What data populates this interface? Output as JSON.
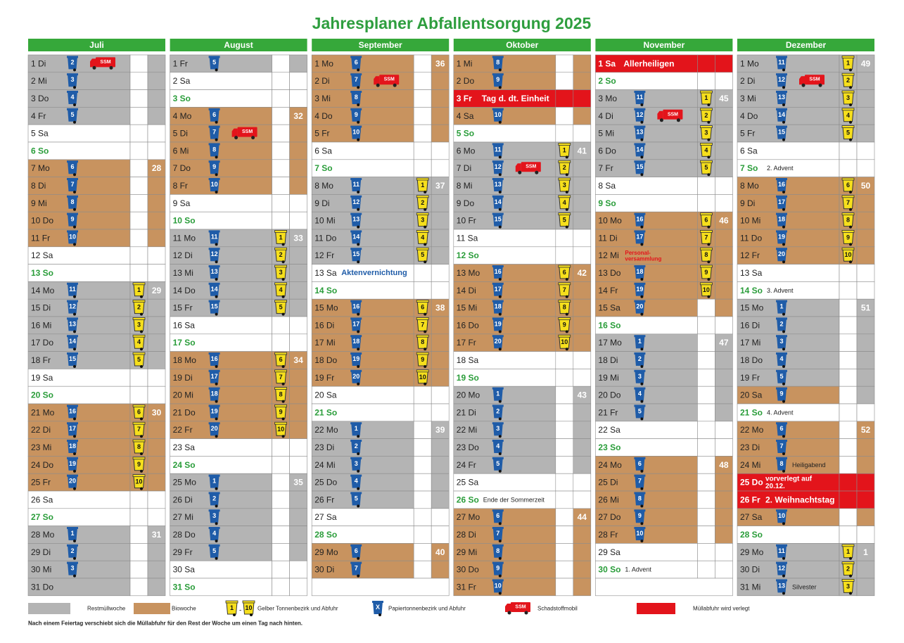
{
  "title": "Jahresplaner Abfallentsorgung 2025",
  "ssm_label": "SSM",
  "colors": {
    "r": "#b4b4b4",
    "b": "#c8935f",
    "h": "#e3141b",
    "w": "#ffffff",
    "s": "#ffffff",
    "header": "#36a83a",
    "sun_text": "#2a9d3a",
    "paper": "#1f5ca8",
    "yellow": "#f6df1c",
    "note_text": "#222222"
  },
  "months": [
    {
      "name": "Juli",
      "days": [
        {
          "d": "1 Di",
          "bg": "r",
          "p": 2,
          "s": true
        },
        {
          "d": "2 Mi",
          "bg": "r",
          "p": 3
        },
        {
          "d": "3 Do",
          "bg": "r",
          "p": 4
        },
        {
          "d": "4 Fr",
          "bg": "r",
          "p": 5
        },
        {
          "d": "5 Sa"
        },
        {
          "d": "6 So",
          "bg": "s"
        },
        {
          "d": "7 Mo",
          "bg": "b",
          "p": 6,
          "w": 28
        },
        {
          "d": "8 Di",
          "bg": "b",
          "p": 7
        },
        {
          "d": "9 Mi",
          "bg": "b",
          "p": 8
        },
        {
          "d": "10 Do",
          "bg": "b",
          "p": 9
        },
        {
          "d": "11 Fr",
          "bg": "b",
          "p": 10
        },
        {
          "d": "12 Sa"
        },
        {
          "d": "13 So",
          "bg": "s"
        },
        {
          "d": "14 Mo",
          "bg": "r",
          "p": 11,
          "y": 1,
          "w": 29
        },
        {
          "d": "15 Di",
          "bg": "r",
          "p": 12,
          "y": 2
        },
        {
          "d": "16 Mi",
          "bg": "r",
          "p": 13,
          "y": 3
        },
        {
          "d": "17 Do",
          "bg": "r",
          "p": 14,
          "y": 4
        },
        {
          "d": "18 Fr",
          "bg": "r",
          "p": 15,
          "y": 5
        },
        {
          "d": "19 Sa"
        },
        {
          "d": "20 So",
          "bg": "s"
        },
        {
          "d": "21 Mo",
          "bg": "b",
          "p": 16,
          "y": 6,
          "w": 30
        },
        {
          "d": "22 Di",
          "bg": "b",
          "p": 17,
          "y": 7
        },
        {
          "d": "23 Mi",
          "bg": "b",
          "p": 18,
          "y": 8
        },
        {
          "d": "24 Do",
          "bg": "b",
          "p": 19,
          "y": 9
        },
        {
          "d": "25 Fr",
          "bg": "b",
          "p": 20,
          "y": 10
        },
        {
          "d": "26 Sa"
        },
        {
          "d": "27 So",
          "bg": "s"
        },
        {
          "d": "28 Mo",
          "bg": "r",
          "p": 1,
          "w": 31
        },
        {
          "d": "29 Di",
          "bg": "r",
          "p": 2
        },
        {
          "d": "30 Mi",
          "bg": "r",
          "p": 3
        },
        {
          "d": "31 Do",
          "bg": "r"
        }
      ]
    },
    {
      "name": "August",
      "days": [
        {
          "d": "1 Fr",
          "bg": "r",
          "p": 5
        },
        {
          "d": "2 Sa"
        },
        {
          "d": "3 So",
          "bg": "s"
        },
        {
          "d": "4 Mo",
          "bg": "b",
          "p": 6,
          "w": 32
        },
        {
          "d": "5 Di",
          "bg": "b",
          "p": 7,
          "s": true
        },
        {
          "d": "6 Mi",
          "bg": "b",
          "p": 8
        },
        {
          "d": "7 Do",
          "bg": "b",
          "p": 9
        },
        {
          "d": "8 Fr",
          "bg": "b",
          "p": 10
        },
        {
          "d": "9 Sa"
        },
        {
          "d": "10 So",
          "bg": "s"
        },
        {
          "d": "11 Mo",
          "bg": "r",
          "p": 11,
          "y": 1,
          "w": 33
        },
        {
          "d": "12 Di",
          "bg": "r",
          "p": 12,
          "y": 2
        },
        {
          "d": "13 Mi",
          "bg": "r",
          "p": 13,
          "y": 3
        },
        {
          "d": "14 Do",
          "bg": "r",
          "p": 14,
          "y": 4
        },
        {
          "d": "15 Fr",
          "bg": "r",
          "p": 15,
          "y": 5
        },
        {
          "d": "16 Sa"
        },
        {
          "d": "17 So",
          "bg": "s"
        },
        {
          "d": "18 Mo",
          "bg": "b",
          "p": 16,
          "y": 6,
          "w": 34
        },
        {
          "d": "19 Di",
          "bg": "b",
          "p": 17,
          "y": 7
        },
        {
          "d": "20 Mi",
          "bg": "b",
          "p": 18,
          "y": 8
        },
        {
          "d": "21 Do",
          "bg": "b",
          "p": 19,
          "y": 9
        },
        {
          "d": "22 Fr",
          "bg": "b",
          "p": 20,
          "y": 10
        },
        {
          "d": "23 Sa"
        },
        {
          "d": "24 So",
          "bg": "s"
        },
        {
          "d": "25 Mo",
          "bg": "r",
          "p": 1,
          "w": 35
        },
        {
          "d": "26 Di",
          "bg": "r",
          "p": 2
        },
        {
          "d": "27 Mi",
          "bg": "r",
          "p": 3
        },
        {
          "d": "28 Do",
          "bg": "r",
          "p": 4
        },
        {
          "d": "29 Fr",
          "bg": "r",
          "p": 5
        },
        {
          "d": "30 Sa"
        },
        {
          "d": "31 So",
          "bg": "s"
        }
      ]
    },
    {
      "name": "September",
      "days": [
        {
          "d": "1 Mo",
          "bg": "b",
          "p": 6,
          "w": 36
        },
        {
          "d": "2 Di",
          "bg": "b",
          "p": 7,
          "s": true
        },
        {
          "d": "3 Mi",
          "bg": "b",
          "p": 8
        },
        {
          "d": "4 Do",
          "bg": "b",
          "p": 9
        },
        {
          "d": "5 Fr",
          "bg": "b",
          "p": 10
        },
        {
          "d": "6 Sa"
        },
        {
          "d": "7 So",
          "bg": "s"
        },
        {
          "d": "8 Mo",
          "bg": "r",
          "p": 11,
          "y": 1,
          "w": 37
        },
        {
          "d": "9 Di",
          "bg": "r",
          "p": 12,
          "y": 2
        },
        {
          "d": "10 Mi",
          "bg": "r",
          "p": 13,
          "y": 3
        },
        {
          "d": "11 Do",
          "bg": "r",
          "p": 14,
          "y": 4
        },
        {
          "d": "12 Fr",
          "bg": "r",
          "p": 15,
          "y": 5
        },
        {
          "d": "13 Sa",
          "n": "Aktenvernichtung",
          "nc": "#1f5ca8"
        },
        {
          "d": "14 So",
          "bg": "s"
        },
        {
          "d": "15 Mo",
          "bg": "b",
          "p": 16,
          "y": 6,
          "w": 38
        },
        {
          "d": "16 Di",
          "bg": "b",
          "p": 17,
          "y": 7
        },
        {
          "d": "17 Mi",
          "bg": "b",
          "p": 18,
          "y": 8
        },
        {
          "d": "18 Do",
          "bg": "b",
          "p": 19,
          "y": 9
        },
        {
          "d": "19 Fr",
          "bg": "b",
          "p": 20,
          "y": 10
        },
        {
          "d": "20 Sa"
        },
        {
          "d": "21 So",
          "bg": "s"
        },
        {
          "d": "22 Mo",
          "bg": "r",
          "p": 1,
          "w": 39
        },
        {
          "d": "23 Di",
          "bg": "r",
          "p": 2
        },
        {
          "d": "24 Mi",
          "bg": "r",
          "p": 3
        },
        {
          "d": "25 Do",
          "bg": "r",
          "p": 4
        },
        {
          "d": "26 Fr",
          "bg": "r",
          "p": 5
        },
        {
          "d": "27 Sa"
        },
        {
          "d": "28 So",
          "bg": "s"
        },
        {
          "d": "29 Mo",
          "bg": "b",
          "p": 6,
          "w": 40
        },
        {
          "d": "30 Di",
          "bg": "b",
          "p": 7
        }
      ]
    },
    {
      "name": "Oktober",
      "days": [
        {
          "d": "1 Mi",
          "bg": "b",
          "p": 8
        },
        {
          "d": "2 Do",
          "bg": "b",
          "p": 9
        },
        {
          "d": "3 Fr",
          "bg": "h",
          "n": "Tag d. dt. Einheit"
        },
        {
          "d": "4 Sa",
          "bg": "b",
          "p": 10
        },
        {
          "d": "5 So",
          "bg": "s"
        },
        {
          "d": "6 Mo",
          "bg": "r",
          "p": 11,
          "y": 1,
          "w": 41
        },
        {
          "d": "7 Di",
          "bg": "r",
          "p": 12,
          "y": 2,
          "s": true
        },
        {
          "d": "8 Mi",
          "bg": "r",
          "p": 13,
          "y": 3
        },
        {
          "d": "9 Do",
          "bg": "r",
          "p": 14,
          "y": 4
        },
        {
          "d": "10 Fr",
          "bg": "r",
          "p": 15,
          "y": 5
        },
        {
          "d": "11 Sa"
        },
        {
          "d": "12 So",
          "bg": "s"
        },
        {
          "d": "13 Mo",
          "bg": "b",
          "p": 16,
          "y": 6,
          "w": 42
        },
        {
          "d": "14 Di",
          "bg": "b",
          "p": 17,
          "y": 7
        },
        {
          "d": "15 Mi",
          "bg": "b",
          "p": 18,
          "y": 8
        },
        {
          "d": "16 Do",
          "bg": "b",
          "p": 19,
          "y": 9
        },
        {
          "d": "17 Fr",
          "bg": "b",
          "p": 20,
          "y": 10
        },
        {
          "d": "18 Sa"
        },
        {
          "d": "19 So",
          "bg": "s"
        },
        {
          "d": "20 Mo",
          "bg": "r",
          "p": 1,
          "w": 43
        },
        {
          "d": "21 Di",
          "bg": "r",
          "p": 2
        },
        {
          "d": "22 Mi",
          "bg": "r",
          "p": 3
        },
        {
          "d": "23 Do",
          "bg": "r",
          "p": 4
        },
        {
          "d": "24 Fr",
          "bg": "r",
          "p": 5
        },
        {
          "d": "25 Sa"
        },
        {
          "d": "26 So",
          "bg": "s",
          "n": "Ende der Sommerzeit"
        },
        {
          "d": "27 Mo",
          "bg": "b",
          "p": 6,
          "w": 44
        },
        {
          "d": "28 Di",
          "bg": "b",
          "p": 7
        },
        {
          "d": "29 Mi",
          "bg": "b",
          "p": 8
        },
        {
          "d": "30 Do",
          "bg": "b",
          "p": 9
        },
        {
          "d": "31 Fr",
          "bg": "b",
          "p": 10
        }
      ]
    },
    {
      "name": "November",
      "days": [
        {
          "d": "1 Sa",
          "bg": "h",
          "n": "Allerheiligen"
        },
        {
          "d": "2 So",
          "bg": "s"
        },
        {
          "d": "3 Mo",
          "bg": "r",
          "p": 11,
          "y": 1,
          "w": 45
        },
        {
          "d": "4 Di",
          "bg": "r",
          "p": 12,
          "y": 2,
          "s": true
        },
        {
          "d": "5 Mi",
          "bg": "r",
          "p": 13,
          "y": 3
        },
        {
          "d": "6 Do",
          "bg": "r",
          "p": 14,
          "y": 4
        },
        {
          "d": "7 Fr",
          "bg": "r",
          "p": 15,
          "y": 5
        },
        {
          "d": "8 Sa"
        },
        {
          "d": "9 So",
          "bg": "s"
        },
        {
          "d": "10 Mo",
          "bg": "b",
          "p": 16,
          "y": 6,
          "w": 46
        },
        {
          "d": "11 Di",
          "bg": "b",
          "p": 17,
          "y": 7
        },
        {
          "d": "12 Mi",
          "bg": "b",
          "y": 8,
          "n": [
            "Personal-",
            "versammlung"
          ],
          "nc": "#e3141b"
        },
        {
          "d": "13 Do",
          "bg": "b",
          "p": 18,
          "y": 9
        },
        {
          "d": "14 Fr",
          "bg": "b",
          "p": 19,
          "y": 10
        },
        {
          "d": "15 Sa",
          "bg": "b",
          "p": 20
        },
        {
          "d": "16 So",
          "bg": "s"
        },
        {
          "d": "17 Mo",
          "bg": "r",
          "p": 1,
          "w": 47
        },
        {
          "d": "18 Di",
          "bg": "r",
          "p": 2
        },
        {
          "d": "19 Mi",
          "bg": "r",
          "p": 3
        },
        {
          "d": "20 Do",
          "bg": "r",
          "p": 4
        },
        {
          "d": "21 Fr",
          "bg": "r",
          "p": 5
        },
        {
          "d": "22 Sa"
        },
        {
          "d": "23 So",
          "bg": "s"
        },
        {
          "d": "24 Mo",
          "bg": "b",
          "p": 6,
          "w": 48
        },
        {
          "d": "25 Di",
          "bg": "b",
          "p": 7
        },
        {
          "d": "26 Mi",
          "bg": "b",
          "p": 8
        },
        {
          "d": "27 Do",
          "bg": "b",
          "p": 9
        },
        {
          "d": "28 Fr",
          "bg": "b",
          "p": 10
        },
        {
          "d": "29 Sa"
        },
        {
          "d": "30 So",
          "bg": "s",
          "n": "1. Advent"
        }
      ]
    },
    {
      "name": "Dezember",
      "days": [
        {
          "d": "1 Mo",
          "bg": "r",
          "p": 11,
          "y": 1,
          "w": 49
        },
        {
          "d": "2 Di",
          "bg": "r",
          "p": 12,
          "y": 2,
          "s": true
        },
        {
          "d": "3 Mi",
          "bg": "r",
          "p": 13,
          "y": 3
        },
        {
          "d": "4 Do",
          "bg": "r",
          "p": 14,
          "y": 4
        },
        {
          "d": "5 Fr",
          "bg": "r",
          "p": 15,
          "y": 5
        },
        {
          "d": "6 Sa"
        },
        {
          "d": "7 So",
          "bg": "s",
          "n": "2. Advent"
        },
        {
          "d": "8 Mo",
          "bg": "b",
          "p": 16,
          "y": 6,
          "w": 50
        },
        {
          "d": "9 Di",
          "bg": "b",
          "p": 17,
          "y": 7
        },
        {
          "d": "10 Mi",
          "bg": "b",
          "p": 18,
          "y": 8
        },
        {
          "d": "11 Do",
          "bg": "b",
          "p": 19,
          "y": 9
        },
        {
          "d": "12 Fr",
          "bg": "b",
          "p": 20,
          "y": 10
        },
        {
          "d": "13 Sa"
        },
        {
          "d": "14 So",
          "bg": "s",
          "n": "3. Advent"
        },
        {
          "d": "15 Mo",
          "bg": "r",
          "p": 1,
          "w": 51
        },
        {
          "d": "16 Di",
          "bg": "r",
          "p": 2
        },
        {
          "d": "17 Mi",
          "bg": "r",
          "p": 3
        },
        {
          "d": "18 Do",
          "bg": "r",
          "p": 4
        },
        {
          "d": "19 Fr",
          "bg": "r",
          "p": 5
        },
        {
          "d": "20 Sa",
          "bg": "b",
          "p": 9,
          "st": "r"
        },
        {
          "d": "21 So",
          "bg": "s",
          "n": "4. Advent"
        },
        {
          "d": "22 Mo",
          "bg": "b",
          "p": 6,
          "w": 52
        },
        {
          "d": "23 Di",
          "bg": "b",
          "p": 7
        },
        {
          "d": "24 Mi",
          "bg": "b",
          "p": 8,
          "n": "Heiligabend"
        },
        {
          "d": "25 Do",
          "bg": "h",
          "n": [
            "vorverlegt auf",
            "20.12."
          ]
        },
        {
          "d": "26 Fr",
          "bg": "h",
          "n": "2. Weihnachtstag"
        },
        {
          "d": "27 Sa",
          "bg": "b",
          "p": 10
        },
        {
          "d": "28 So",
          "bg": "s"
        },
        {
          "d": "29 Mo",
          "bg": "r",
          "p": 11,
          "y": 1,
          "w": 1
        },
        {
          "d": "30 Di",
          "bg": "r",
          "p": 12,
          "y": 2
        },
        {
          "d": "31 Mi",
          "bg": "r",
          "p": 13,
          "y": 3,
          "n": "Silvester"
        }
      ]
    }
  ],
  "legend": {
    "rest": "Restmüllwoche",
    "bio": "Biowoche",
    "yellow_from": 1,
    "dash": "-",
    "yellow_to": 10,
    "yellow": "Gelber Tonnenbezirk und Abfuhr",
    "paper_icon": "X",
    "paper": "Papiertonnenbezirk und Abfuhr",
    "ssm": "Schadstoffmobil",
    "moved": "Müllabfuhr wird verlegt"
  },
  "footer": "Nach einem Feiertag verschiebt sich die Müllabfuhr für den Rest der Woche um einen Tag nach hinten."
}
